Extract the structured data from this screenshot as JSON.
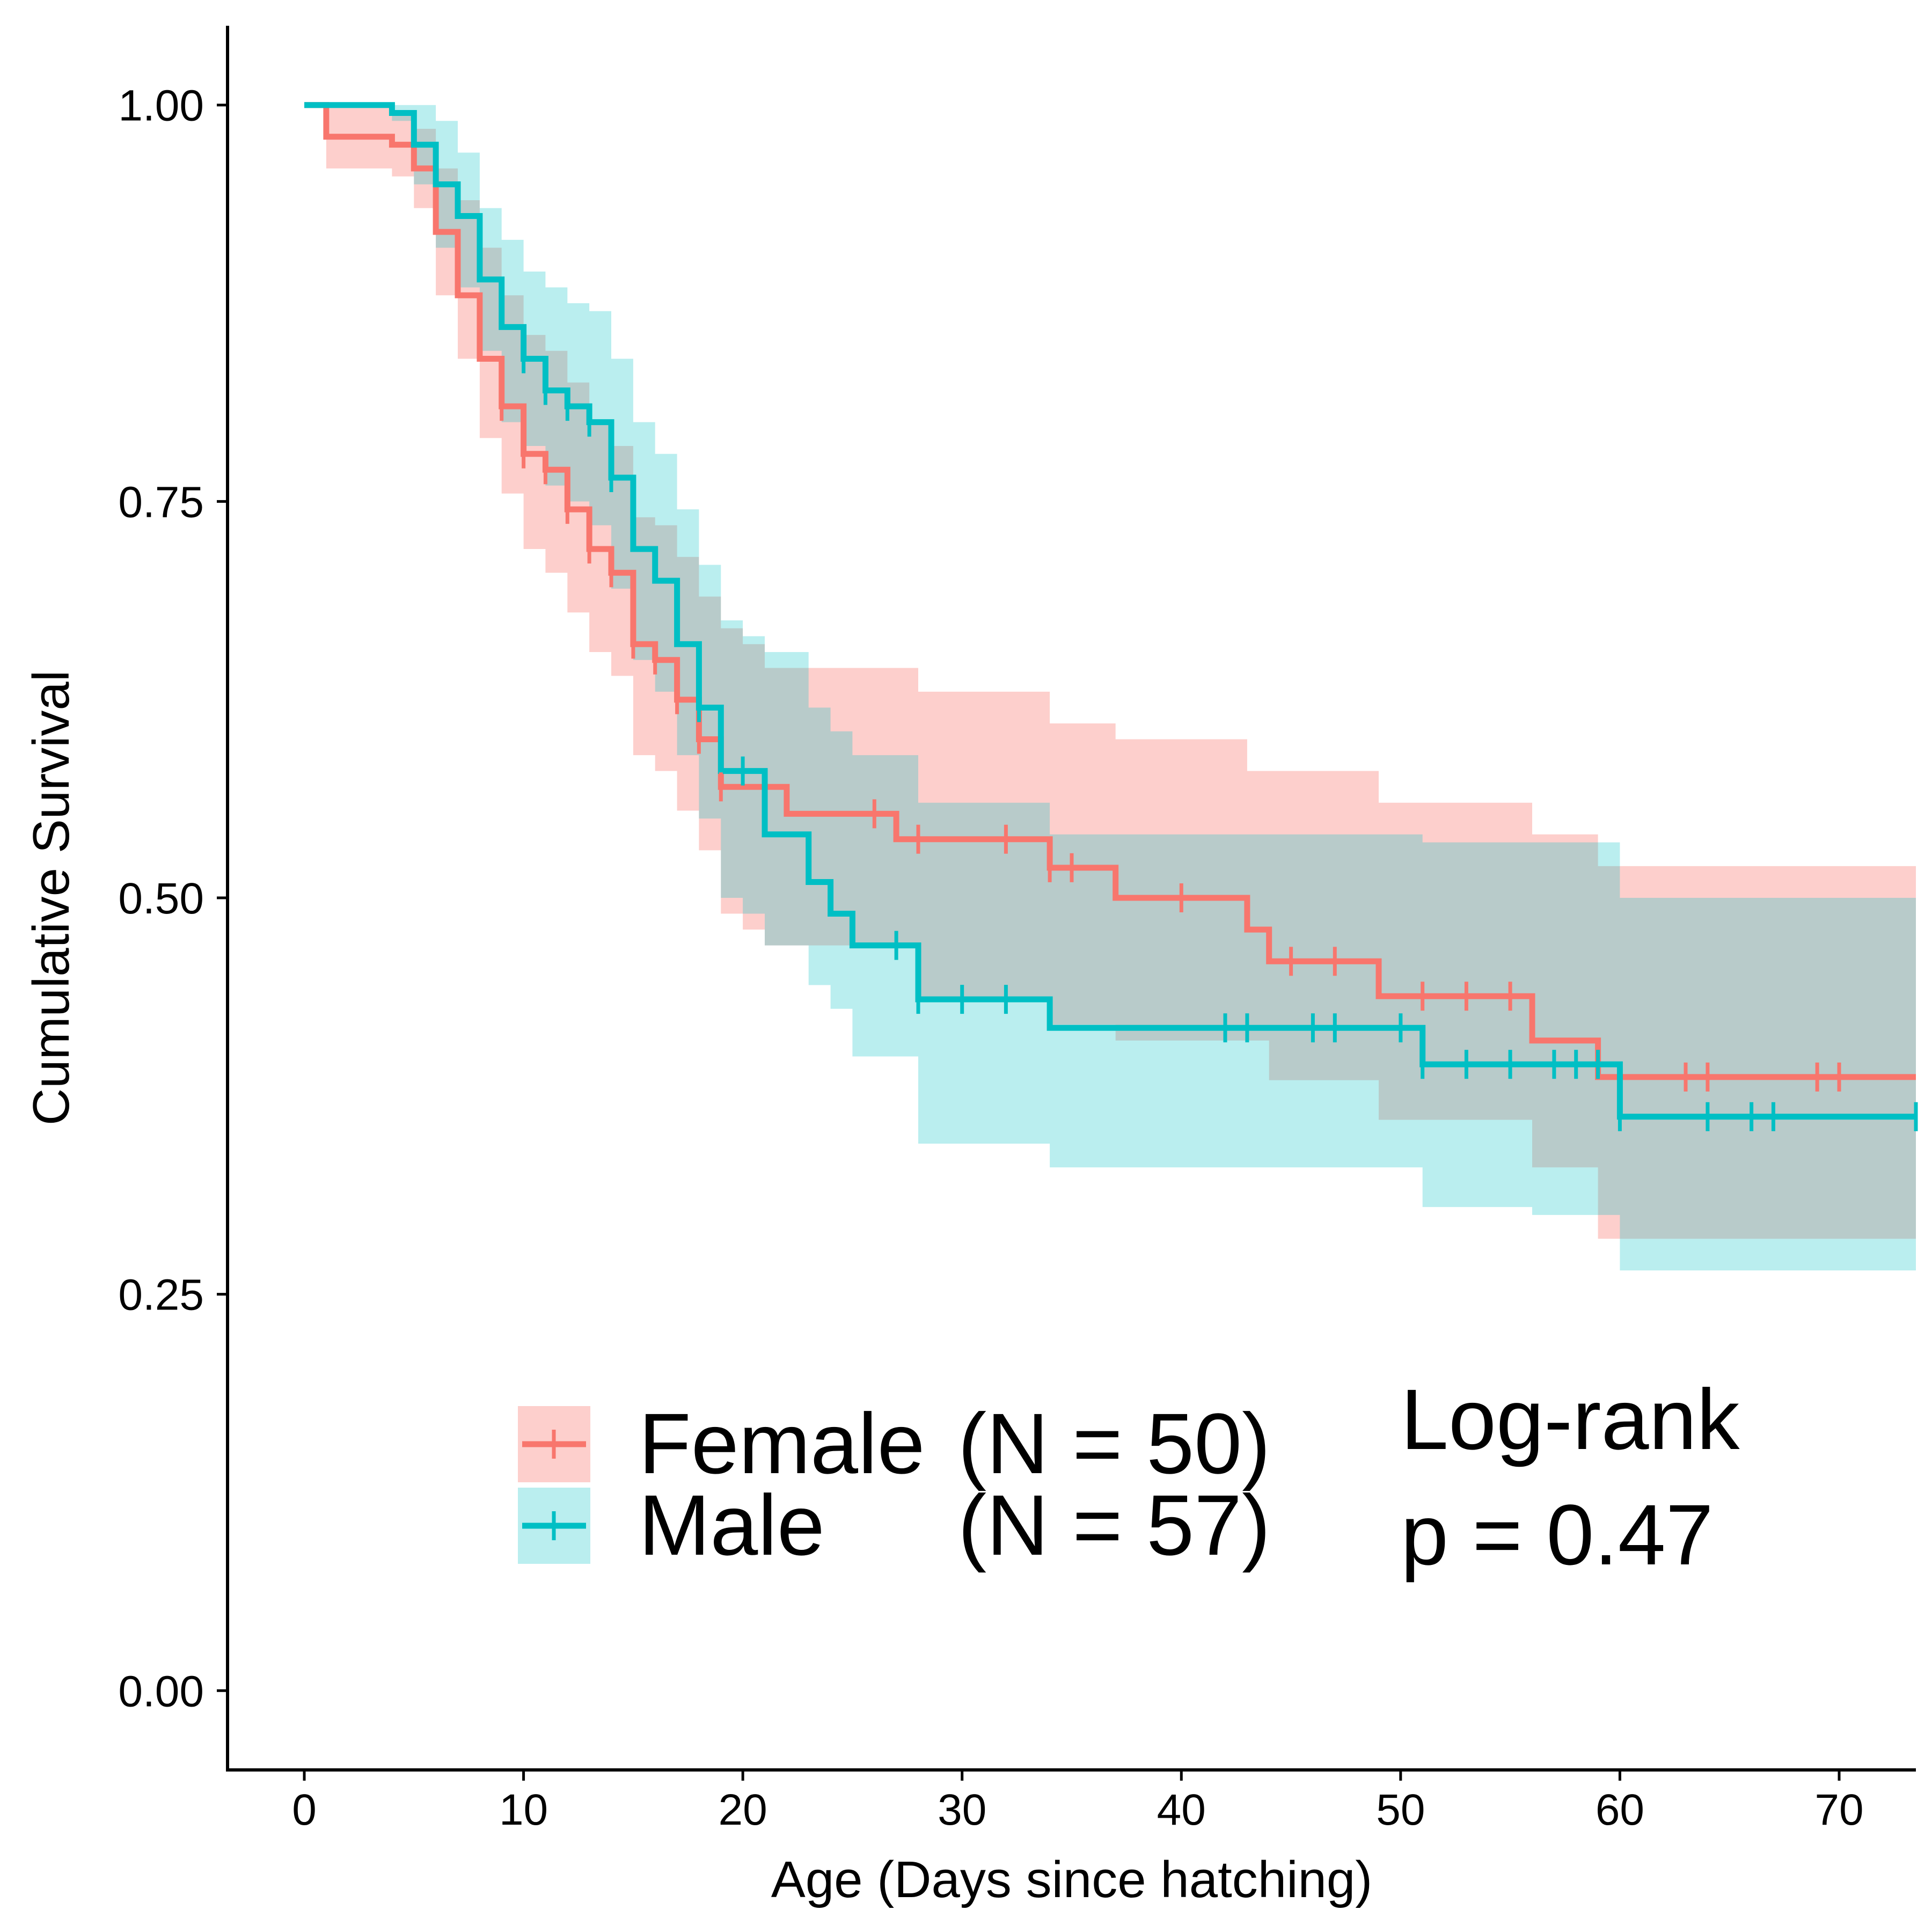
{
  "chart_data": {
    "type": "line",
    "subtype": "kaplan-meier survival curve with confidence bands and censor marks",
    "xlabel": "Age (Days since hatching)",
    "ylabel": "Cumulative Survival",
    "xlim": [
      -3.5,
      73.5
    ],
    "ylim": [
      -0.05,
      1.05
    ],
    "x_ticks": [
      0,
      10,
      20,
      30,
      40,
      50,
      60,
      70
    ],
    "y_ticks": [
      0.0,
      0.25,
      0.5,
      0.75,
      1.0
    ],
    "y_tick_labels": [
      "0.00",
      "0.25",
      "0.50",
      "0.75",
      "1.00"
    ],
    "grid": false,
    "legend": {
      "position": "bottom-center",
      "entries": [
        {
          "series": "Female",
          "label": "Female (N = 50)",
          "text": "Female",
          "n_text": "(N = 50)"
        },
        {
          "series": "Male",
          "label": "Male (N = 57)",
          "text": "Male",
          "n_text": "(N = 57)"
        }
      ]
    },
    "annotation": {
      "line1": "Log-rank",
      "line2": "p = 0.47"
    },
    "colors": {
      "Female": "#F8766D",
      "Male": "#00BFC4"
    },
    "series": [
      {
        "name": "Female",
        "color": "#F8766D",
        "steps": [
          [
            0,
            1.0
          ],
          [
            1,
            0.98
          ],
          [
            4,
            0.975
          ],
          [
            5,
            0.96
          ],
          [
            6,
            0.92
          ],
          [
            7,
            0.88
          ],
          [
            8,
            0.84
          ],
          [
            9,
            0.81
          ],
          [
            10,
            0.78
          ],
          [
            11,
            0.77
          ],
          [
            12,
            0.745
          ],
          [
            13,
            0.72
          ],
          [
            14,
            0.705
          ],
          [
            15,
            0.66
          ],
          [
            16,
            0.65
          ],
          [
            17,
            0.625
          ],
          [
            18,
            0.6
          ],
          [
            19,
            0.57
          ],
          [
            22,
            0.553
          ],
          [
            27,
            0.537
          ],
          [
            34,
            0.519
          ],
          [
            37,
            0.5
          ],
          [
            43,
            0.48
          ],
          [
            44,
            0.46
          ],
          [
            49,
            0.438
          ],
          [
            56,
            0.41
          ],
          [
            59,
            0.387
          ],
          [
            73.5,
            0.387
          ]
        ],
        "ci_upper": [
          [
            0,
            1.0
          ],
          [
            1,
            1.0
          ],
          [
            4,
            0.995
          ],
          [
            5,
            0.985
          ],
          [
            6,
            0.96
          ],
          [
            7,
            0.94
          ],
          [
            8,
            0.91
          ],
          [
            9,
            0.88
          ],
          [
            10,
            0.855
          ],
          [
            11,
            0.845
          ],
          [
            12,
            0.825
          ],
          [
            13,
            0.8
          ],
          [
            14,
            0.785
          ],
          [
            15,
            0.74
          ],
          [
            16,
            0.735
          ],
          [
            17,
            0.715
          ],
          [
            18,
            0.69
          ],
          [
            19,
            0.67
          ],
          [
            20,
            0.66
          ],
          [
            21,
            0.645
          ],
          [
            28,
            0.63
          ],
          [
            34,
            0.61
          ],
          [
            37,
            0.6
          ],
          [
            43,
            0.58
          ],
          [
            49,
            0.56
          ],
          [
            56,
            0.54
          ],
          [
            59,
            0.52
          ],
          [
            73.5,
            0.52
          ]
        ],
        "ci_lower": [
          [
            0,
            1.0
          ],
          [
            1,
            0.96
          ],
          [
            4,
            0.955
          ],
          [
            5,
            0.935
          ],
          [
            6,
            0.88
          ],
          [
            7,
            0.84
          ],
          [
            8,
            0.79
          ],
          [
            9,
            0.755
          ],
          [
            10,
            0.72
          ],
          [
            11,
            0.705
          ],
          [
            12,
            0.68
          ],
          [
            13,
            0.655
          ],
          [
            14,
            0.64
          ],
          [
            15,
            0.59
          ],
          [
            16,
            0.58
          ],
          [
            17,
            0.555
          ],
          [
            18,
            0.53
          ],
          [
            19,
            0.49
          ],
          [
            20,
            0.48
          ],
          [
            21,
            0.47
          ],
          [
            28,
            0.435
          ],
          [
            34,
            0.42
          ],
          [
            37,
            0.41
          ],
          [
            44,
            0.385
          ],
          [
            49,
            0.36
          ],
          [
            56,
            0.33
          ],
          [
            59,
            0.285
          ],
          [
            73.5,
            0.285
          ]
        ],
        "censor_times": [
          9,
          10,
          11,
          12,
          13,
          14,
          15,
          16,
          17,
          18,
          19,
          26,
          28,
          32,
          34,
          35,
          40,
          45,
          47,
          51,
          53,
          55,
          63,
          64,
          69,
          70
        ]
      },
      {
        "name": "Male",
        "color": "#00BFC4",
        "steps": [
          [
            0,
            1.0
          ],
          [
            4,
            0.995
          ],
          [
            5,
            0.975
          ],
          [
            6,
            0.95
          ],
          [
            7,
            0.93
          ],
          [
            8,
            0.89
          ],
          [
            9,
            0.86
          ],
          [
            10,
            0.84
          ],
          [
            11,
            0.82
          ],
          [
            12,
            0.81
          ],
          [
            13,
            0.8
          ],
          [
            14,
            0.765
          ],
          [
            15,
            0.72
          ],
          [
            16,
            0.7
          ],
          [
            17,
            0.66
          ],
          [
            18,
            0.62
          ],
          [
            19,
            0.58
          ],
          [
            21,
            0.54
          ],
          [
            23,
            0.51
          ],
          [
            24,
            0.49
          ],
          [
            25,
            0.47
          ],
          [
            28,
            0.436
          ],
          [
            34,
            0.418
          ],
          [
            51,
            0.395
          ],
          [
            60,
            0.362
          ],
          [
            73.5,
            0.362
          ]
        ],
        "ci_upper": [
          [
            0,
            1.0
          ],
          [
            5,
            1.0
          ],
          [
            6,
            0.99
          ],
          [
            7,
            0.97
          ],
          [
            8,
            0.935
          ],
          [
            9,
            0.915
          ],
          [
            10,
            0.895
          ],
          [
            11,
            0.885
          ],
          [
            12,
            0.875
          ],
          [
            13,
            0.87
          ],
          [
            14,
            0.84
          ],
          [
            15,
            0.8
          ],
          [
            16,
            0.78
          ],
          [
            17,
            0.745
          ],
          [
            18,
            0.71
          ],
          [
            19,
            0.675
          ],
          [
            20,
            0.665
          ],
          [
            21,
            0.655
          ],
          [
            23,
            0.62
          ],
          [
            24,
            0.605
          ],
          [
            25,
            0.59
          ],
          [
            28,
            0.56
          ],
          [
            34,
            0.54
          ],
          [
            51,
            0.535
          ],
          [
            60,
            0.5
          ],
          [
            73.5,
            0.5
          ]
        ],
        "ci_lower": [
          [
            0,
            1.0
          ],
          [
            4,
            0.99
          ],
          [
            5,
            0.95
          ],
          [
            6,
            0.91
          ],
          [
            7,
            0.885
          ],
          [
            8,
            0.845
          ],
          [
            9,
            0.8
          ],
          [
            10,
            0.785
          ],
          [
            11,
            0.76
          ],
          [
            12,
            0.75
          ],
          [
            13,
            0.735
          ],
          [
            14,
            0.695
          ],
          [
            15,
            0.65
          ],
          [
            16,
            0.63
          ],
          [
            17,
            0.59
          ],
          [
            18,
            0.55
          ],
          [
            19,
            0.5
          ],
          [
            20,
            0.49
          ],
          [
            21,
            0.47
          ],
          [
            23,
            0.445
          ],
          [
            24,
            0.43
          ],
          [
            25,
            0.4
          ],
          [
            28,
            0.345
          ],
          [
            34,
            0.33
          ],
          [
            51,
            0.305
          ],
          [
            56,
            0.3
          ],
          [
            60,
            0.265
          ],
          [
            73.5,
            0.265
          ]
        ],
        "censor_times": [
          10,
          11,
          12,
          13,
          14,
          18,
          20,
          27,
          28,
          30,
          32,
          42,
          43,
          46,
          47,
          50,
          51,
          53,
          55,
          57,
          58,
          59,
          60,
          64,
          66,
          67,
          73.5
        ]
      }
    ]
  }
}
